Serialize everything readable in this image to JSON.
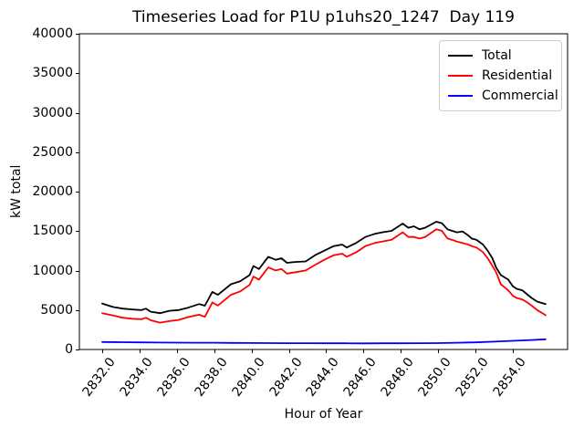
{
  "figure": {
    "background": "#ffffff"
  },
  "chart_data": {
    "type": "line",
    "title": "Timeseries Load for P1U p1uhs20_1247  Day 119",
    "xlabel": "Hour of Year",
    "ylabel": "kW total",
    "xlim": [
      2830.78,
      2856.93
    ],
    "ylim": [
      0,
      40000
    ],
    "x_tick_values": [
      2832,
      2834,
      2836,
      2838,
      2840,
      2842,
      2844,
      2846,
      2848,
      2850,
      2852,
      2854
    ],
    "x_tick_labels": [
      "2832.0",
      "2834.0",
      "2836.0",
      "2838.0",
      "2840.0",
      "2842.0",
      "2844.0",
      "2846.0",
      "2848.0",
      "2850.0",
      "2852.0",
      "2854.0"
    ],
    "y_tick_values": [
      0,
      5000,
      10000,
      15000,
      20000,
      25000,
      30000,
      35000,
      40000
    ],
    "y_tick_labels": [
      "0",
      "5000",
      "10000",
      "15000",
      "20000",
      "25000",
      "30000",
      "35000",
      "40000"
    ],
    "grid": false,
    "legend": {
      "location": "upper right",
      "edge_color": "#cccccc"
    },
    "series": [
      {
        "name": "Total",
        "color": "#000000",
        "points": [
          [
            2832.0,
            5830
          ],
          [
            2832.3,
            5600
          ],
          [
            2832.6,
            5370
          ],
          [
            2833.1,
            5180
          ],
          [
            2833.6,
            5070
          ],
          [
            2834.1,
            4990
          ],
          [
            2834.35,
            5180
          ],
          [
            2834.6,
            4790
          ],
          [
            2835.1,
            4600
          ],
          [
            2835.6,
            4900
          ],
          [
            2836.1,
            4990
          ],
          [
            2836.6,
            5300
          ],
          [
            2837.2,
            5760
          ],
          [
            2837.5,
            5550
          ],
          [
            2837.9,
            7300
          ],
          [
            2838.2,
            6920
          ],
          [
            2838.9,
            8270
          ],
          [
            2839.4,
            8660
          ],
          [
            2839.9,
            9430
          ],
          [
            2840.1,
            10580
          ],
          [
            2840.4,
            10200
          ],
          [
            2840.9,
            11740
          ],
          [
            2841.3,
            11360
          ],
          [
            2841.6,
            11560
          ],
          [
            2841.9,
            10980
          ],
          [
            2842.4,
            11100
          ],
          [
            2842.9,
            11160
          ],
          [
            2843.4,
            11940
          ],
          [
            2843.9,
            12520
          ],
          [
            2844.4,
            13100
          ],
          [
            2844.85,
            13290
          ],
          [
            2845.1,
            12910
          ],
          [
            2845.6,
            13490
          ],
          [
            2846.1,
            14260
          ],
          [
            2846.6,
            14650
          ],
          [
            2847.0,
            14840
          ],
          [
            2847.5,
            15030
          ],
          [
            2848.1,
            15950
          ],
          [
            2848.4,
            15420
          ],
          [
            2848.7,
            15610
          ],
          [
            2849.0,
            15230
          ],
          [
            2849.3,
            15420
          ],
          [
            2849.9,
            16190
          ],
          [
            2850.2,
            16000
          ],
          [
            2850.5,
            15230
          ],
          [
            2850.75,
            15030
          ],
          [
            2851.0,
            14840
          ],
          [
            2851.3,
            14960
          ],
          [
            2851.6,
            14460
          ],
          [
            2851.8,
            14060
          ],
          [
            2852.05,
            13880
          ],
          [
            2852.4,
            13290
          ],
          [
            2852.65,
            12520
          ],
          [
            2852.9,
            11560
          ],
          [
            2853.1,
            10400
          ],
          [
            2853.35,
            9430
          ],
          [
            2853.75,
            8850
          ],
          [
            2854.0,
            8000
          ],
          [
            2854.2,
            7690
          ],
          [
            2854.5,
            7500
          ],
          [
            2854.7,
            7110
          ],
          [
            2855.0,
            6530
          ],
          [
            2855.3,
            6070
          ],
          [
            2855.75,
            5760
          ]
        ]
      },
      {
        "name": "Residential",
        "color": "#ff0000",
        "points": [
          [
            2832.0,
            4600
          ],
          [
            2832.3,
            4450
          ],
          [
            2832.6,
            4300
          ],
          [
            2833.1,
            4020
          ],
          [
            2833.6,
            3900
          ],
          [
            2834.1,
            3830
          ],
          [
            2834.35,
            4020
          ],
          [
            2834.6,
            3700
          ],
          [
            2835.1,
            3400
          ],
          [
            2835.6,
            3600
          ],
          [
            2836.1,
            3750
          ],
          [
            2836.6,
            4100
          ],
          [
            2837.2,
            4410
          ],
          [
            2837.5,
            4140
          ],
          [
            2837.9,
            5950
          ],
          [
            2838.2,
            5570
          ],
          [
            2838.9,
            6920
          ],
          [
            2839.4,
            7360
          ],
          [
            2839.9,
            8200
          ],
          [
            2840.1,
            9240
          ],
          [
            2840.4,
            8850
          ],
          [
            2840.9,
            10400
          ],
          [
            2841.3,
            10010
          ],
          [
            2841.6,
            10200
          ],
          [
            2841.9,
            9620
          ],
          [
            2842.4,
            9800
          ],
          [
            2842.9,
            10010
          ],
          [
            2843.4,
            10700
          ],
          [
            2843.9,
            11360
          ],
          [
            2844.4,
            11940
          ],
          [
            2844.85,
            12140
          ],
          [
            2845.1,
            11750
          ],
          [
            2845.6,
            12300
          ],
          [
            2846.1,
            13100
          ],
          [
            2846.6,
            13490
          ],
          [
            2847.0,
            13680
          ],
          [
            2847.5,
            13900
          ],
          [
            2848.1,
            14840
          ],
          [
            2848.4,
            14260
          ],
          [
            2848.7,
            14260
          ],
          [
            2849.0,
            14060
          ],
          [
            2849.3,
            14260
          ],
          [
            2849.9,
            15230
          ],
          [
            2850.2,
            15030
          ],
          [
            2850.5,
            14060
          ],
          [
            2850.75,
            13880
          ],
          [
            2851.0,
            13680
          ],
          [
            2851.3,
            13490
          ],
          [
            2851.6,
            13290
          ],
          [
            2851.8,
            13100
          ],
          [
            2852.05,
            12910
          ],
          [
            2852.4,
            12330
          ],
          [
            2852.65,
            11560
          ],
          [
            2852.9,
            10590
          ],
          [
            2853.1,
            9800
          ],
          [
            2853.35,
            8270
          ],
          [
            2853.75,
            7500
          ],
          [
            2854.0,
            6800
          ],
          [
            2854.2,
            6530
          ],
          [
            2854.5,
            6340
          ],
          [
            2854.7,
            6070
          ],
          [
            2855.0,
            5570
          ],
          [
            2855.3,
            4990
          ],
          [
            2855.75,
            4350
          ]
        ]
      },
      {
        "name": "Commercial",
        "color": "#0000ff",
        "points": [
          [
            2832.0,
            950
          ],
          [
            2833.0,
            920
          ],
          [
            2834.0,
            900
          ],
          [
            2835.0,
            880
          ],
          [
            2836.0,
            870
          ],
          [
            2837.0,
            860
          ],
          [
            2838.0,
            850
          ],
          [
            2839.0,
            830
          ],
          [
            2840.0,
            820
          ],
          [
            2841.0,
            810
          ],
          [
            2842.0,
            800
          ],
          [
            2843.0,
            795
          ],
          [
            2844.0,
            790
          ],
          [
            2845.0,
            785
          ],
          [
            2846.0,
            780
          ],
          [
            2847.0,
            785
          ],
          [
            2848.0,
            790
          ],
          [
            2849.0,
            795
          ],
          [
            2850.0,
            810
          ],
          [
            2851.0,
            850
          ],
          [
            2852.0,
            900
          ],
          [
            2853.0,
            1000
          ],
          [
            2854.0,
            1100
          ],
          [
            2855.0,
            1200
          ],
          [
            2855.75,
            1300
          ]
        ]
      }
    ]
  }
}
